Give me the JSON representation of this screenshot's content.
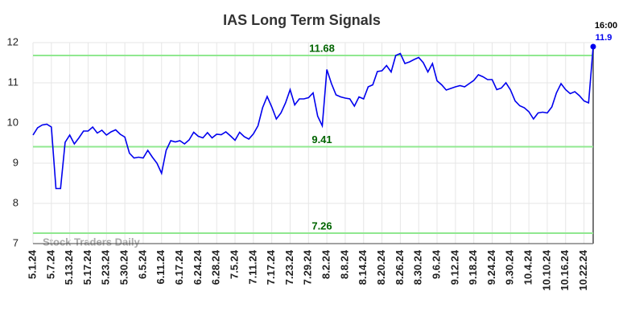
{
  "chart_data": {
    "type": "line",
    "title": "IAS Long Term Signals",
    "categories": [
      "5.1.24",
      null,
      null,
      null,
      "5.7.24",
      null,
      null,
      null,
      "5.13.24",
      null,
      null,
      null,
      "5.17.24",
      null,
      null,
      null,
      "5.23.24",
      null,
      null,
      null,
      "5.30.24",
      null,
      null,
      null,
      "6.5.24",
      null,
      null,
      null,
      "6.11.24",
      null,
      null,
      null,
      "6.17.24",
      null,
      null,
      null,
      "6.24.24",
      null,
      null,
      null,
      "6.28.24",
      null,
      null,
      null,
      "7.5.24",
      null,
      null,
      null,
      "7.11.24",
      null,
      null,
      null,
      "7.17.24",
      null,
      null,
      null,
      "7.23.24",
      null,
      null,
      null,
      "7.29.24",
      null,
      null,
      null,
      "8.2.24",
      null,
      null,
      null,
      "8.8.24",
      null,
      null,
      null,
      "8.14.24",
      null,
      null,
      null,
      "8.20.24",
      null,
      null,
      null,
      "8.26.24",
      null,
      null,
      null,
      "8.30.24",
      null,
      null,
      null,
      "9.6.24",
      null,
      null,
      null,
      "9.12.24",
      null,
      null,
      null,
      "9.18.24",
      null,
      null,
      null,
      "9.24.24",
      null,
      null,
      null,
      "9.30.24",
      null,
      null,
      null,
      "10.4.24",
      null,
      null,
      null,
      "10.10.24",
      null,
      null,
      null,
      "10.16.24",
      null,
      null,
      null,
      "10.22.24",
      null,
      null
    ],
    "values": [
      9.7,
      9.88,
      9.95,
      9.97,
      9.9,
      8.37,
      8.37,
      9.52,
      9.7,
      9.48,
      9.63,
      9.8,
      9.8,
      9.9,
      9.75,
      9.82,
      9.7,
      9.78,
      9.83,
      9.72,
      9.65,
      9.25,
      9.13,
      9.15,
      9.13,
      9.32,
      9.15,
      9.0,
      8.75,
      9.32,
      9.56,
      9.53,
      9.56,
      9.48,
      9.58,
      9.77,
      9.67,
      9.63,
      9.76,
      9.63,
      9.72,
      9.71,
      9.78,
      9.68,
      9.57,
      9.77,
      9.66,
      9.6,
      9.73,
      9.93,
      10.38,
      10.66,
      10.4,
      10.1,
      10.25,
      10.5,
      10.83,
      10.45,
      10.6,
      10.6,
      10.63,
      10.75,
      10.17,
      9.93,
      11.33,
      10.98,
      10.7,
      10.65,
      10.62,
      10.6,
      10.42,
      10.65,
      10.6,
      10.9,
      10.95,
      11.28,
      11.3,
      11.43,
      11.27,
      11.68,
      11.73,
      11.48,
      11.52,
      11.58,
      11.63,
      11.5,
      11.27,
      11.48,
      11.05,
      10.95,
      10.82,
      10.86,
      10.9,
      10.93,
      10.9,
      10.98,
      11.06,
      11.2,
      11.15,
      11.08,
      11.08,
      10.83,
      10.87,
      11.0,
      10.82,
      10.55,
      10.43,
      10.38,
      10.28,
      10.1,
      10.25,
      10.27,
      10.25,
      10.4,
      10.75,
      10.98,
      10.83,
      10.73,
      10.78,
      10.68,
      10.55,
      10.5,
      11.9
    ],
    "color": "#0000ee",
    "ylim": [
      7,
      12
    ],
    "yticks": [
      7,
      8,
      9,
      10,
      11,
      12
    ],
    "grid": true,
    "hlines": [
      11.68,
      9.41,
      7.26
    ],
    "hline_color": "#90e890",
    "hline_label_color": "#006400",
    "last_time": "16:00",
    "watermark": "Stock Traders Daily"
  }
}
